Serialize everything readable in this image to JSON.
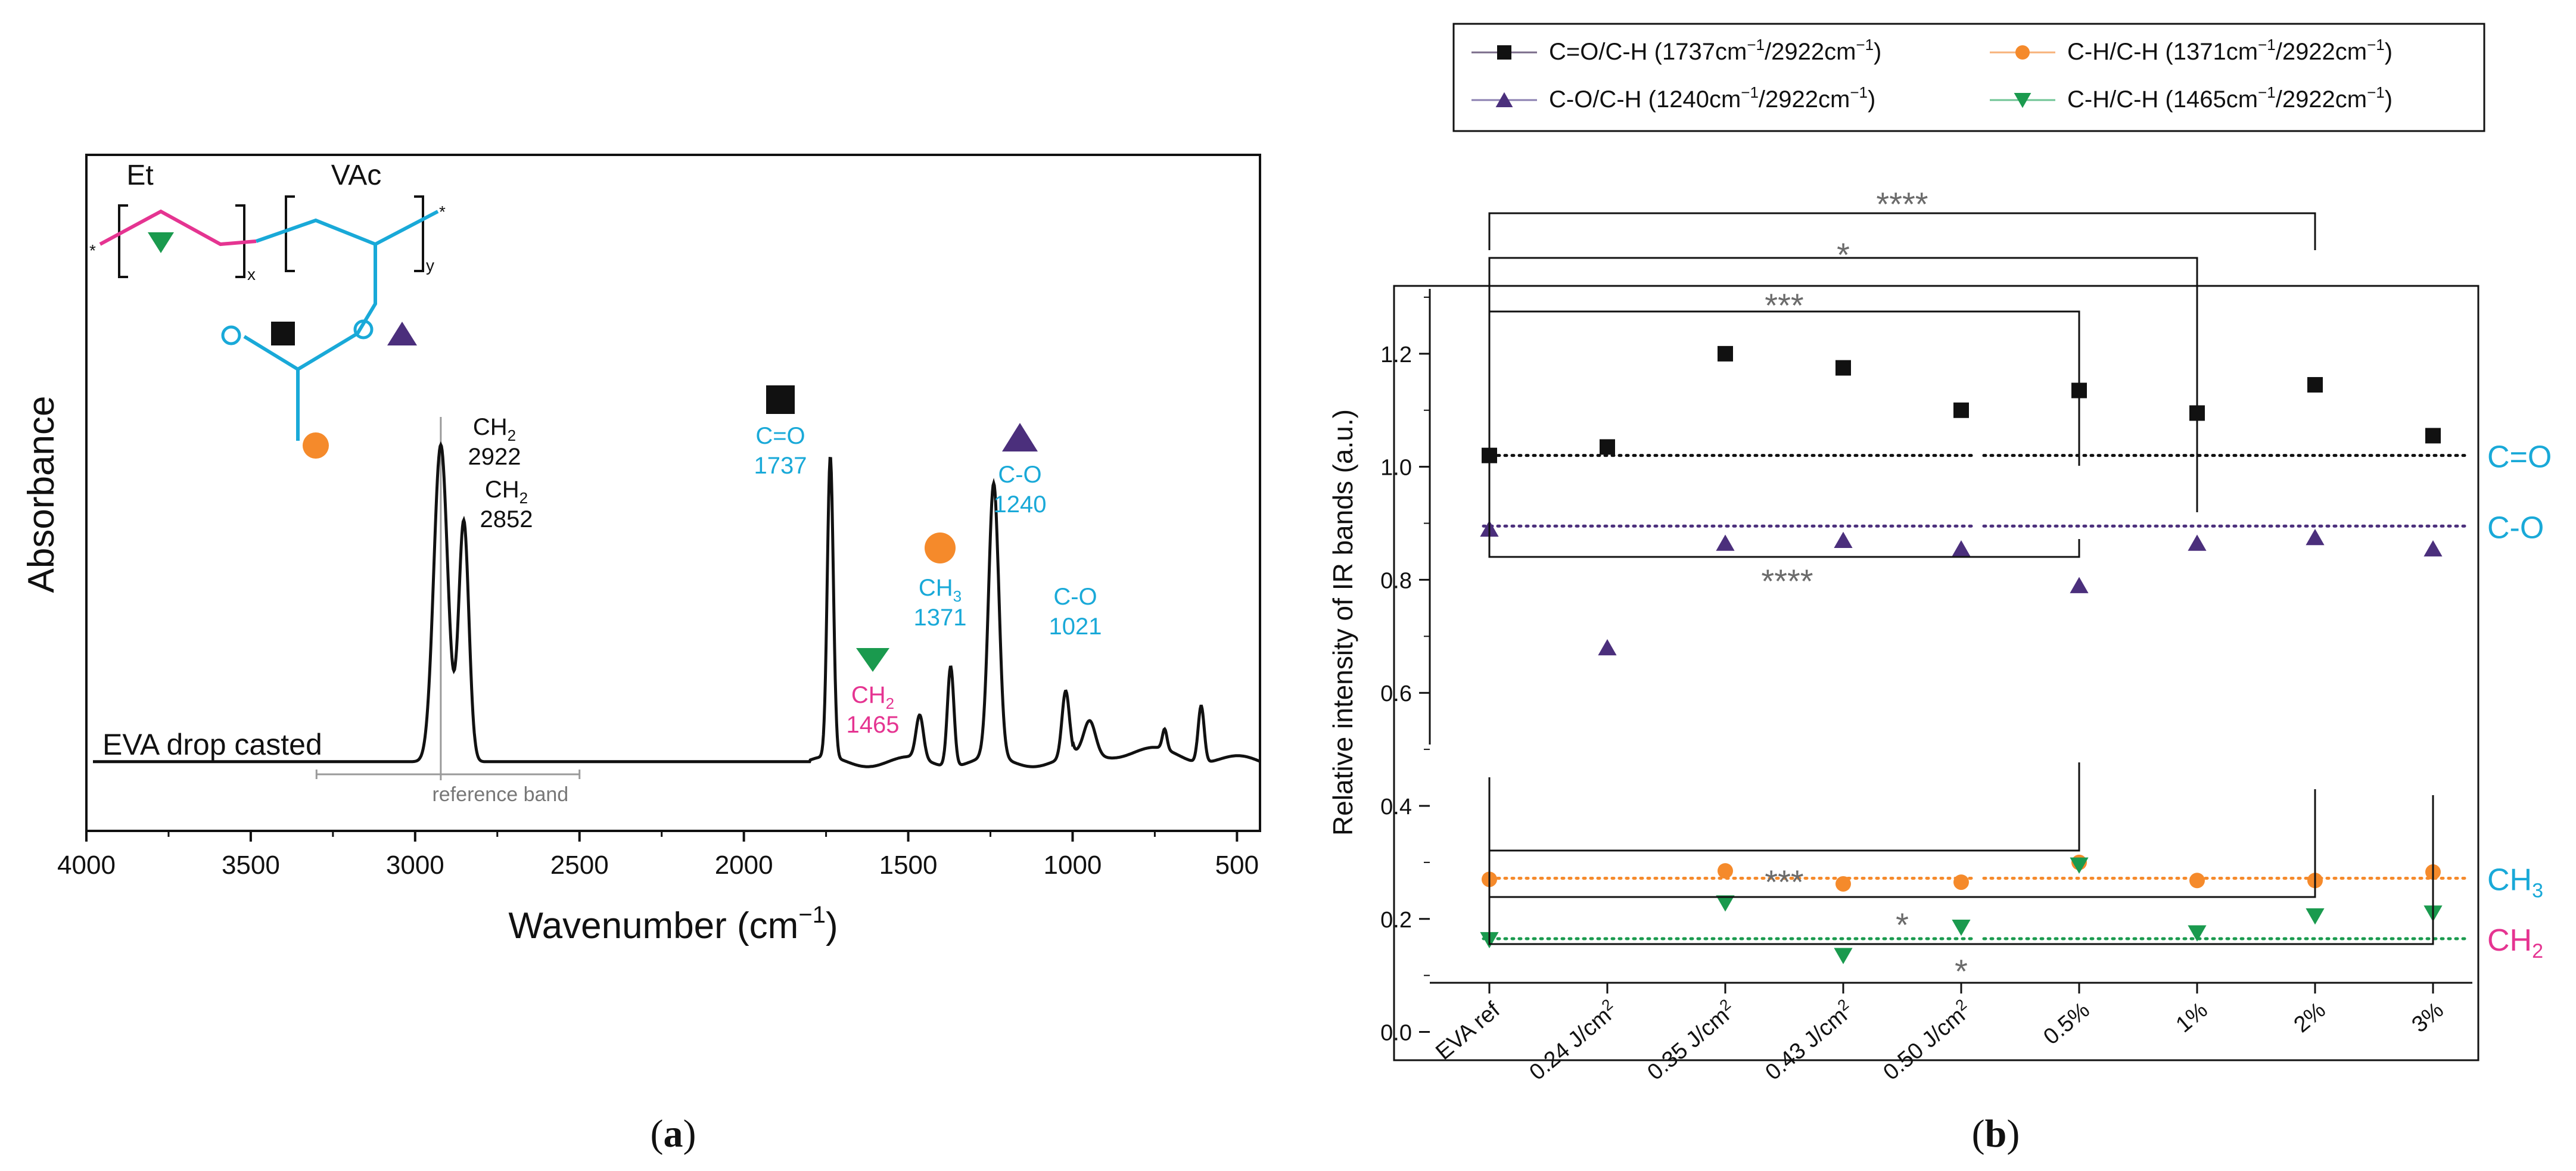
{
  "colors": {
    "black": "#111111",
    "cyan": "#19a9d8",
    "magenta": "#e53491",
    "orange": "#f58a2b",
    "purple": "#4b2f7c",
    "green": "#1a9a4e",
    "gray": "#6b6b6b",
    "ref_gray": "#9a9a9a"
  },
  "panel_labels": {
    "a": "(a)",
    "b": "(b)",
    "a_letter": "a",
    "b_letter": "b"
  },
  "chart_data": [
    {
      "type": "line",
      "panel": "a",
      "title": "",
      "xlabel": "Wavenumber (cm−1)",
      "xlabel_text": "Wavenumber (cm",
      "xlabel_sup": "−1",
      "xlabel_close": ")",
      "ylabel": "Absorbance",
      "xlim": [
        4000,
        430
      ],
      "x_reversed": true,
      "ylim": [
        0,
        1.12
      ],
      "xticks": [
        4000,
        3500,
        3000,
        2500,
        2000,
        1500,
        1000,
        500
      ],
      "series_label": "EVA drop casted",
      "reference_band": {
        "label": "reference band",
        "x": 2922,
        "range": [
          3300,
          2500
        ]
      },
      "peaks": [
        {
          "x": 2922,
          "y": 0.95,
          "w": 30
        },
        {
          "x": 2852,
          "y": 0.72,
          "w": 22
        },
        {
          "x": 1737,
          "y": 0.9,
          "w": 13
        },
        {
          "x": 1465,
          "y": 0.13,
          "w": 16
        },
        {
          "x": 1371,
          "y": 0.3,
          "w": 14
        },
        {
          "x": 1240,
          "y": 0.82,
          "w": 22
        },
        {
          "x": 1021,
          "y": 0.2,
          "w": 16
        },
        {
          "x": 948,
          "y": 0.1,
          "w": 25
        },
        {
          "x": 720,
          "y": 0.06,
          "w": 10
        },
        {
          "x": 609,
          "y": 0.17,
          "w": 13
        }
      ],
      "annotations": [
        {
          "group": "CH",
          "sub": "2",
          "value": "2922",
          "color": "black",
          "x": 2922
        },
        {
          "group": "CH",
          "sub": "2",
          "value": "2852",
          "color": "black",
          "x": 2852
        },
        {
          "group": "C=O",
          "sub": "",
          "value": "1737",
          "color": "cyan",
          "x": 1737,
          "marker": "square"
        },
        {
          "group": "CH",
          "sub": "2",
          "value": "1465",
          "color": "magenta",
          "x": 1465,
          "marker": "triangle-down"
        },
        {
          "group": "CH",
          "sub": "3",
          "value": "1371",
          "color": "cyan",
          "x": 1371,
          "marker": "circle"
        },
        {
          "group": "C-O",
          "sub": "",
          "value": "1240",
          "color": "cyan",
          "x": 1240,
          "marker": "triangle-up"
        },
        {
          "group": "C-O",
          "sub": "",
          "value": "1021",
          "color": "cyan",
          "x": 1021
        }
      ],
      "structure": {
        "et_label": "Et",
        "vac_label": "VAc",
        "x_sub": "x",
        "y_sub": "y",
        "end": "*",
        "o_label": "O"
      }
    },
    {
      "type": "scatter",
      "panel": "b",
      "title": "",
      "xlabel": "",
      "ylabel": "Relative intensity of IR bands (a.u.)",
      "ylim": [
        -0.05,
        1.32
      ],
      "yticks": [
        "0.0",
        "0.2",
        "0.4",
        "0.6",
        "0.8",
        "1.0",
        "1.2"
      ],
      "categories": [
        "EVA ref",
        "0.24 J/cm2",
        "0.35 J/cm2",
        "0.43 J/cm2",
        "0.50 J/cm2",
        "0.5%",
        "1%",
        "2%",
        "3%"
      ],
      "category_labels": [
        {
          "text": "EVA ref",
          "sup": ""
        },
        {
          "text": "0.24 J/cm",
          "sup": "2"
        },
        {
          "text": "0.35 J/cm",
          "sup": "2"
        },
        {
          "text": "0.43 J/cm",
          "sup": "2"
        },
        {
          "text": "0.50 J/cm",
          "sup": "2"
        },
        {
          "text": "0.5%",
          "sup": ""
        },
        {
          "text": "1%",
          "sup": ""
        },
        {
          "text": "2%",
          "sup": ""
        },
        {
          "text": "3%",
          "sup": ""
        }
      ],
      "series": [
        {
          "name": "C=O/C-H (1737cm⁻¹/2922cm⁻¹)",
          "marker": "square",
          "color": "black",
          "values": [
            1.02,
            1.035,
            1.2,
            1.175,
            1.1,
            1.135,
            1.095,
            1.145,
            1.055
          ],
          "ref_line": 1.02,
          "side_label": "C=O",
          "side_label_color": "cyan",
          "side_sub": ""
        },
        {
          "name": "C-O/C-H (1240cm⁻¹/2922cm⁻¹)",
          "marker": "triangle-up",
          "color": "purple",
          "values": [
            0.89,
            0.68,
            0.865,
            0.87,
            0.855,
            0.79,
            0.865,
            0.875,
            0.855
          ],
          "ref_line": 0.895,
          "side_label": "C-O",
          "side_label_color": "cyan",
          "side_sub": ""
        },
        {
          "name": "C-H/C-H (1371cm⁻¹/2922cm⁻¹)",
          "marker": "circle",
          "color": "orange",
          "values": [
            0.27,
            null,
            0.285,
            0.262,
            0.265,
            0.3,
            0.268,
            0.268,
            0.283
          ],
          "ref_line": 0.272,
          "side_label": "CH",
          "side_label_color": "cyan",
          "side_sub": "3"
        },
        {
          "name": "C-H/C-H (1465cm⁻¹/2922cm⁻¹)",
          "marker": "triangle-down",
          "color": "green",
          "values": [
            0.163,
            null,
            0.228,
            0.135,
            0.185,
            0.295,
            0.175,
            0.205,
            0.21
          ],
          "ref_line": 0.165,
          "side_label": "CH",
          "side_label_color": "magenta",
          "side_sub": "2"
        }
      ],
      "legend": {
        "placement": "top",
        "entries": [
          {
            "text": "C=O/C-H (1737cm",
            "a": "−1",
            "mid": "/2922cm",
            "b": "−1",
            "end": ")",
            "marker": "square",
            "color": "black",
            "line": "#7a6b8a"
          },
          {
            "text": "C-H/C-H (1371cm",
            "a": "−1",
            "mid": "/2922cm",
            "b": "−1",
            "end": ")",
            "marker": "circle",
            "color": "orange",
            "line": "#f7b27a"
          },
          {
            "text": "C-O/C-H (1240cm",
            "a": "−1",
            "mid": "/2922cm",
            "b": "−1",
            "end": ")",
            "marker": "triangle-up",
            "color": "purple",
            "line": "#8b7fb0"
          },
          {
            "text": "C-H/C-H (1465cm",
            "a": "−1",
            "mid": "/2922cm",
            "b": "−1",
            "end": ")",
            "marker": "triangle-down",
            "color": "green",
            "line": "#6fc495"
          }
        ]
      },
      "significance_upper": [
        {
          "from": 0,
          "to": 7,
          "label": "****"
        },
        {
          "from": 0,
          "to": 6,
          "label": "*"
        },
        {
          "from": 0,
          "to": 5,
          "label": "***"
        }
      ],
      "significance_mid": [
        {
          "from": 0,
          "to": 5,
          "label": "****"
        }
      ],
      "significance_lower": [
        {
          "from": 0,
          "to": 5,
          "label": "***"
        },
        {
          "from": 0,
          "to": 7,
          "label": "*"
        },
        {
          "from": 0,
          "to": 8,
          "label": "*"
        }
      ]
    }
  ]
}
